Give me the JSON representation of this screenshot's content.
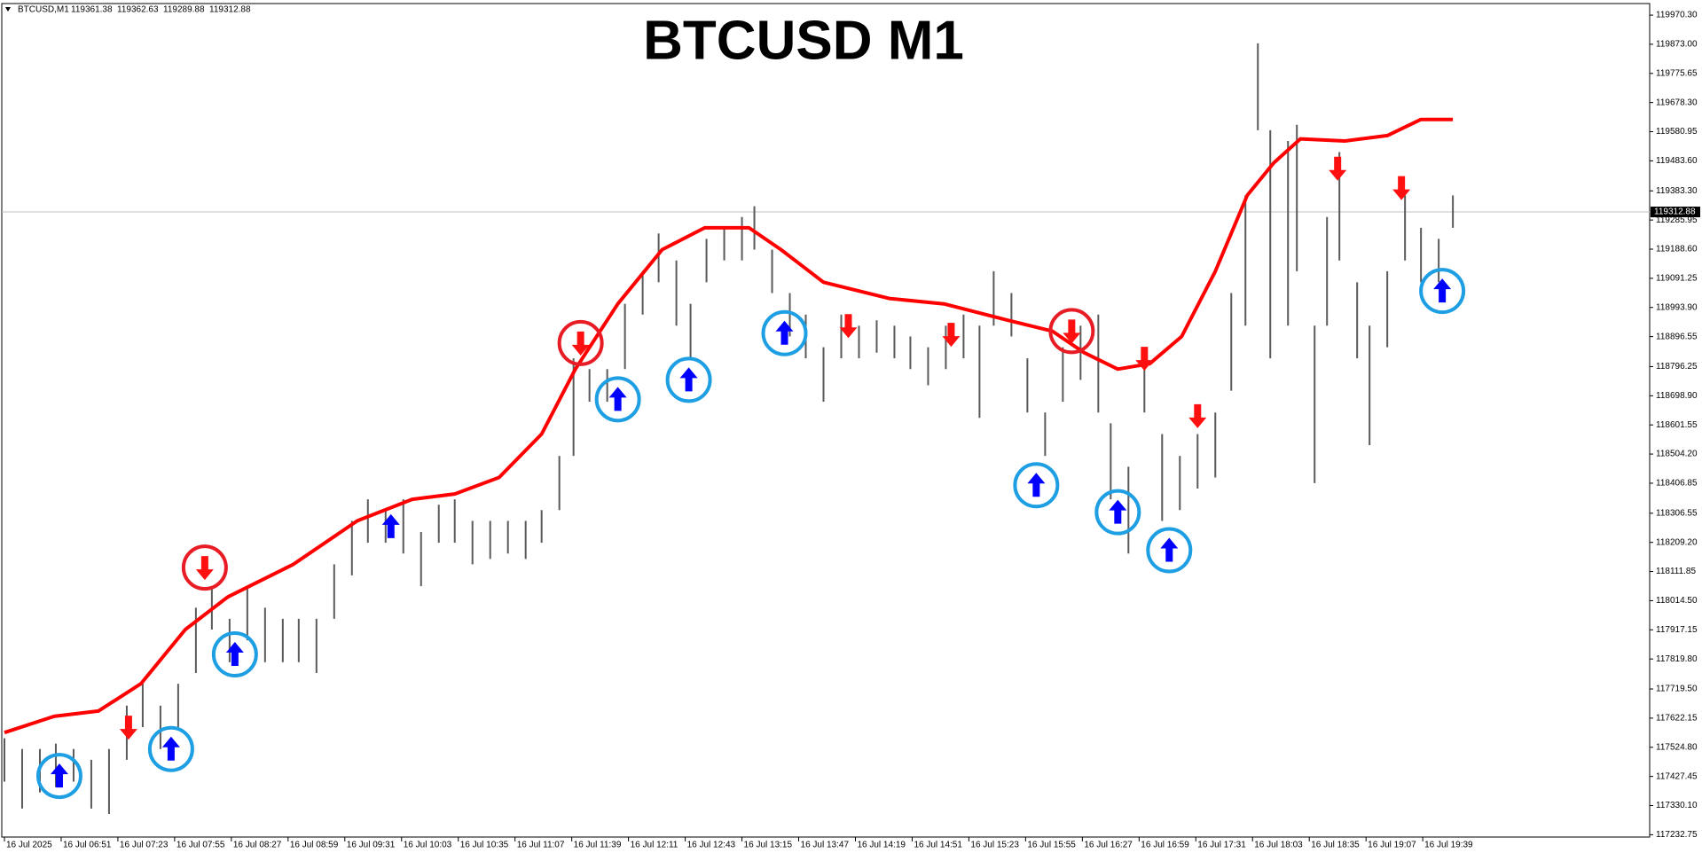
{
  "chart_data": {
    "type": "ohlc",
    "title": "BTCUSD M1",
    "header": {
      "symbol": "BTCUSD,M1",
      "ohlc": [
        119361.38,
        119362.63,
        119289.88,
        119312.88
      ]
    },
    "current_price": 119312.88,
    "xlim": [
      -1.5,
      928
    ],
    "ylim": [
      117225,
      120009
    ],
    "xticks": [
      {
        "value": 0,
        "label": "16 Jul 2025"
      },
      {
        "value": 32,
        "label": "16 Jul 06:51"
      },
      {
        "value": 64,
        "label": "16 Jul 07:23"
      },
      {
        "value": 96,
        "label": "16 Jul 07:55"
      },
      {
        "value": 128,
        "label": "16 Jul 08:27"
      },
      {
        "value": 160,
        "label": "16 Jul 08:59"
      },
      {
        "value": 192,
        "label": "16 Jul 09:31"
      },
      {
        "value": 224,
        "label": "16 Jul 10:03"
      },
      {
        "value": 256,
        "label": "16 Jul 10:35"
      },
      {
        "value": 288,
        "label": "16 Jul 11:07"
      },
      {
        "value": 320,
        "label": "16 Jul 11:39"
      },
      {
        "value": 352,
        "label": "16 Jul 12:11"
      },
      {
        "value": 384,
        "label": "16 Jul 12:43"
      },
      {
        "value": 416,
        "label": "16 Jul 13:15"
      },
      {
        "value": 448,
        "label": "16 Jul 13:47"
      },
      {
        "value": 480,
        "label": "16 Jul 14:19"
      },
      {
        "value": 512,
        "label": "16 Jul 14:51"
      },
      {
        "value": 544,
        "label": "16 Jul 15:23"
      },
      {
        "value": 576,
        "label": "16 Jul 15:55"
      },
      {
        "value": 608,
        "label": "16 Jul 16:27"
      },
      {
        "value": 640,
        "label": "16 Jul 16:59"
      },
      {
        "value": 672,
        "label": "16 Jul 17:31"
      },
      {
        "value": 704,
        "label": "16 Jul 18:03"
      },
      {
        "value": 736,
        "label": "16 Jul 18:35"
      },
      {
        "value": 768,
        "label": "16 Jul 19:07"
      },
      {
        "value": 800,
        "label": "16 Jul 19:39"
      }
    ],
    "yticks": [
      {
        "value": 119970.3,
        "label": "119970.30"
      },
      {
        "value": 119873,
        "label": "119873.00"
      },
      119775.65,
      {
        "value": 119678.3,
        "label": "119678.30"
      },
      119580.95,
      {
        "value": 119483.6,
        "label": "119483.60"
      },
      {
        "value": 119383.3,
        "label": "119383.30"
      },
      119285.95,
      {
        "value": 119188.6,
        "label": "119188.60"
      },
      119091.25,
      {
        "value": 118993.9,
        "label": "118993.90"
      },
      118896.55,
      118796.25,
      {
        "value": 118698.9,
        "label": "118698.90"
      },
      118601.55,
      {
        "value": 118504.2,
        "label": "118504.20"
      },
      118406.85,
      118306.55,
      {
        "value": 118209.2,
        "label": "118209.20"
      },
      118111.85,
      {
        "value": 118014.5,
        "label": "118014.50"
      },
      117917.15,
      {
        "value": 117819.8,
        "label": "117819.80"
      },
      {
        "value": 117719.5,
        "label": "117719.50"
      },
      117622.15,
      {
        "value": 117524.8,
        "label": "117524.80"
      },
      117427.45,
      {
        "value": 117330.1,
        "label": "117330.10"
      },
      117232.75
    ],
    "price": {
      "color": "#5a5a5a",
      "x": [
        0,
        10,
        20,
        29,
        39,
        49,
        59,
        69,
        78,
        88,
        98,
        108,
        117,
        127,
        137,
        147,
        157,
        166,
        176,
        186,
        196,
        205,
        215,
        225,
        235,
        245,
        254,
        264,
        274,
        284,
        294,
        303,
        313,
        321,
        330,
        340,
        350,
        360,
        369,
        379,
        387,
        396,
        406,
        416,
        423,
        433,
        443,
        452,
        462,
        472,
        482,
        492,
        502,
        511,
        521,
        531,
        541,
        550,
        558,
        568,
        577,
        587,
        597,
        607,
        617,
        624,
        634,
        643,
        653,
        663,
        673,
        683,
        692,
        700,
        707,
        714,
        724,
        729,
        739,
        746,
        753,
        763,
        770,
        780,
        790,
        799,
        809,
        817
      ],
      "high": [
        117555,
        117519,
        117519,
        117537,
        117519,
        117483,
        117519,
        117664,
        117737,
        117664,
        117737,
        117991,
        118063,
        117954,
        118063,
        117991,
        117954,
        117954,
        117954,
        118136,
        118281,
        118353,
        118317,
        118353,
        118244,
        118335,
        118353,
        118281,
        118281,
        118281,
        118281,
        118317,
        118498,
        118824,
        118788,
        118788,
        119006,
        119115,
        119241,
        119151,
        119006,
        119223,
        119260,
        119296,
        119332,
        119187,
        119042,
        118970,
        118861,
        118970,
        118933,
        118951,
        118933,
        118897,
        118861,
        118933,
        118970,
        118933,
        119115,
        119042,
        118824,
        118643,
        118861,
        118933,
        118970,
        118607,
        118462,
        118824,
        118571,
        118498,
        118571,
        118643,
        119042,
        119368,
        119876,
        119586,
        119550,
        119604,
        118933,
        119296,
        119513,
        119078,
        118933,
        119115,
        119368,
        119260,
        119223,
        119368
      ],
      "low": [
        117410,
        117320,
        117374,
        117392,
        117410,
        117320,
        117302,
        117483,
        117592,
        117519,
        117592,
        117773,
        117918,
        117809,
        117882,
        117809,
        117809,
        117809,
        117773,
        117954,
        118099,
        118208,
        118208,
        118172,
        118063,
        118208,
        118208,
        118136,
        118154,
        118172,
        118154,
        118208,
        118317,
        118498,
        118679,
        118679,
        118788,
        118970,
        119078,
        118933,
        118824,
        119078,
        119151,
        119151,
        119187,
        119042,
        118897,
        118824,
        118679,
        118824,
        118824,
        118843,
        118824,
        118788,
        118734,
        118788,
        118824,
        118625,
        118933,
        118897,
        118643,
        118498,
        118679,
        118752,
        118643,
        118353,
        118172,
        118643,
        118281,
        118317,
        118389,
        118426,
        118716,
        118933,
        119586,
        118824,
        118933,
        119115,
        118407,
        118933,
        119151,
        118824,
        118534,
        118861,
        119151,
        119078,
        119078,
        119260
      ]
    },
    "ma": {
      "color": "#ff0000",
      "x": [
        0,
        28,
        53,
        77,
        102,
        126,
        163,
        199,
        230,
        254,
        279,
        303,
        322,
        346,
        371,
        395,
        420,
        438,
        462,
        499,
        530,
        566,
        591,
        609,
        628,
        646,
        664,
        683,
        701,
        716,
        731,
        756,
        780,
        799,
        817
      ],
      "values": [
        117574,
        117628,
        117646,
        117737,
        117918,
        118027,
        118136,
        118281,
        118353,
        118371,
        118426,
        118571,
        118788,
        119006,
        119187,
        119260,
        119260,
        119187,
        119078,
        119024,
        119006,
        118951,
        118915,
        118843,
        118788,
        118806,
        118897,
        119115,
        119368,
        119477,
        119557,
        119550,
        119568,
        119622,
        119622
      ]
    },
    "buy_signals": {
      "color": "#0000ff",
      "circle_color": "#1e9fe3",
      "x": [
        31,
        94,
        130,
        218,
        346,
        386,
        440,
        582,
        628,
        657,
        811
      ],
      "values": [
        117429,
        117519,
        117835,
        118262,
        118687,
        118752,
        118908,
        118400,
        118310,
        118183,
        119049
      ],
      "circled": [
        true,
        true,
        true,
        false,
        true,
        true,
        true,
        true,
        true,
        true,
        true
      ]
    },
    "sell_signals": {
      "color": "#ff1010",
      "circle_color": "#e81c24",
      "x": [
        70,
        113,
        325,
        476,
        534,
        602,
        643,
        673,
        752,
        788
      ],
      "values": [
        117592,
        118125,
        118875,
        118933,
        118904,
        118915,
        118824,
        118632,
        119459,
        119394
      ],
      "circled": [
        false,
        true,
        true,
        false,
        false,
        true,
        false,
        false,
        false,
        false
      ]
    }
  }
}
